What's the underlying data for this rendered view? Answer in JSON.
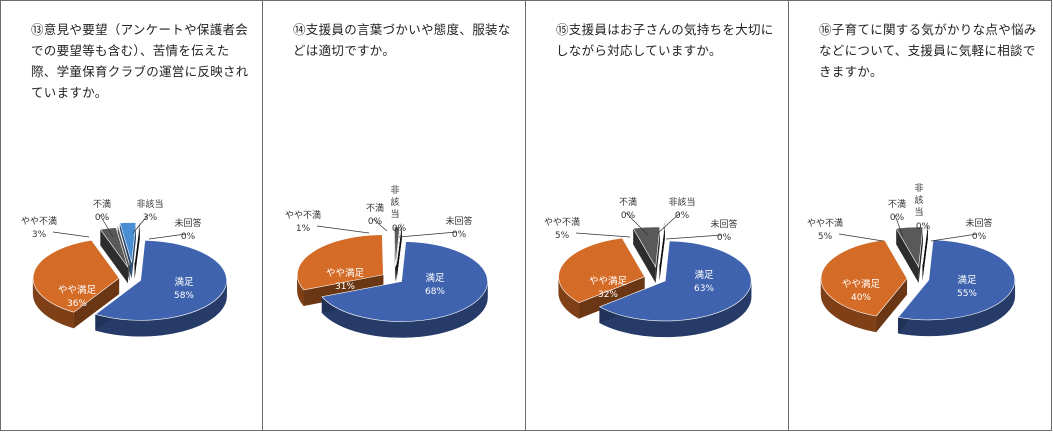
{
  "colors": {
    "satisfied": "#3f63ae",
    "somewhat_satisfied": "#d46b27",
    "somewhat_dissatisfied": "#595959",
    "dissatisfied": "#a6a6a6",
    "not_applicable": "#4a8ed4",
    "no_answer": "#1a1a1a"
  },
  "chart_data": [
    {
      "type": "pie",
      "title": "⑬意見や要望（アンケートや保護者会での要望等も含む）、苦情を伝えた際、学童保育クラブの運営に反映されていますか。",
      "slices": [
        {
          "label": "満足",
          "value": 58,
          "value_label": "58%",
          "color": "#3f63ae"
        },
        {
          "label": "やや満足",
          "value": 36,
          "value_label": "36%",
          "color": "#d46b27"
        },
        {
          "label": "やや不満",
          "value": 3,
          "value_label": "3%",
          "color": "#595959"
        },
        {
          "label": "不満",
          "value": 0,
          "value_label": "0%",
          "color": "#a6a6a6"
        },
        {
          "label": "非該当",
          "value": 3,
          "value_label": "3%",
          "color": "#4a8ed4"
        },
        {
          "label": "未回答",
          "value": 0,
          "value_label": "0%",
          "color": "#1a1a1a"
        }
      ]
    },
    {
      "type": "pie",
      "title": "⑭支援員の言葉づかいや態度、服装などは適切ですか。",
      "slices": [
        {
          "label": "満足",
          "value": 68,
          "value_label": "68%",
          "color": "#3f63ae"
        },
        {
          "label": "やや満足",
          "value": 31,
          "value_label": "31%",
          "color": "#d46b27"
        },
        {
          "label": "やや不満",
          "value": 1,
          "value_label": "1%",
          "color": "#595959"
        },
        {
          "label": "不満",
          "value": 0,
          "value_label": "0%",
          "color": "#a6a6a6"
        },
        {
          "label": "非該当",
          "value": 0,
          "value_label": "0%",
          "color": "#4a8ed4"
        },
        {
          "label": "未回答",
          "value": 0,
          "value_label": "0%",
          "color": "#1a1a1a"
        }
      ]
    },
    {
      "type": "pie",
      "title": "⑮支援員はお子さんの気持ちを大切にしながら対応していますか。",
      "slices": [
        {
          "label": "満足",
          "value": 63,
          "value_label": "63%",
          "color": "#3f63ae"
        },
        {
          "label": "やや満足",
          "value": 32,
          "value_label": "32%",
          "color": "#d46b27"
        },
        {
          "label": "やや不満",
          "value": 5,
          "value_label": "5%",
          "color": "#595959"
        },
        {
          "label": "不満",
          "value": 0,
          "value_label": "0%",
          "color": "#a6a6a6"
        },
        {
          "label": "非該当",
          "value": 0,
          "value_label": "0%",
          "color": "#4a8ed4"
        },
        {
          "label": "未回答",
          "value": 0,
          "value_label": "0%",
          "color": "#1a1a1a"
        }
      ]
    },
    {
      "type": "pie",
      "title": "⑯子育てに関する気がかりな点や悩みなどについて、支援員に気軽に相談できますか。",
      "slices": [
        {
          "label": "満足",
          "value": 55,
          "value_label": "55%",
          "color": "#3f63ae"
        },
        {
          "label": "やや満足",
          "value": 40,
          "value_label": "40%",
          "color": "#d46b27"
        },
        {
          "label": "やや不満",
          "value": 5,
          "value_label": "5%",
          "color": "#595959"
        },
        {
          "label": "不満",
          "value": 0,
          "value_label": "0%",
          "color": "#a6a6a6"
        },
        {
          "label": "非該当",
          "value": 0,
          "value_label": "0%",
          "color": "#4a8ed4"
        },
        {
          "label": "未回答",
          "value": 0,
          "value_label": "0%",
          "color": "#1a1a1a"
        }
      ]
    }
  ]
}
